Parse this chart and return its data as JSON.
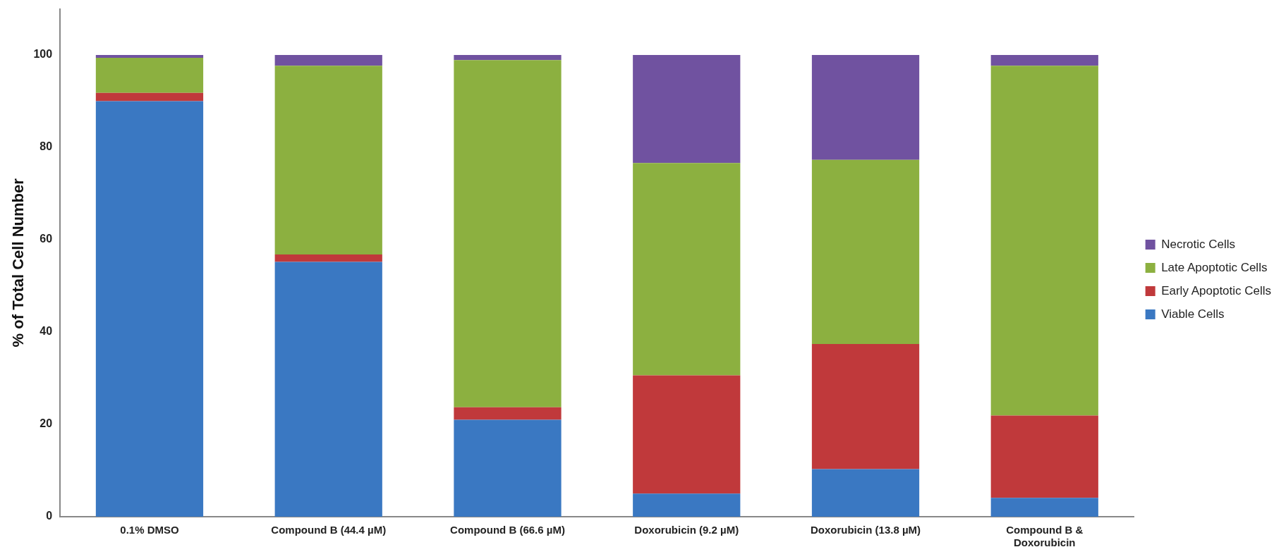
{
  "chart_data": {
    "type": "bar",
    "stacked": true,
    "ylabel": "% of Total Cell Number",
    "categories": [
      "0.1% DMSO",
      "Compound B (44.4 µM)",
      "Compound B (66.6 µM)",
      "Doxorubicin (9.2 µM)",
      "Doxorubicin (13.8 µM)",
      "Compound B & Doxorubicin"
    ],
    "series": [
      {
        "name": "Viable Cells",
        "color": "#3a78c2",
        "values": [
          90,
          55.2,
          21,
          5,
          10.3,
          4.1
        ]
      },
      {
        "name": "Early Apoptotic Cells",
        "color": "#c0393b",
        "values": [
          1.8,
          1.6,
          2.7,
          25.6,
          27.1,
          17.8
        ]
      },
      {
        "name": "Late Apoptotic Cells",
        "color": "#8cb040",
        "values": [
          7.6,
          40.9,
          75.2,
          46,
          39.9,
          75.8
        ]
      },
      {
        "name": "Necrotic Cells",
        "color": "#7052a0",
        "values": [
          0.6,
          2.3,
          1.1,
          23.4,
          22.7,
          2.3
        ]
      }
    ],
    "ylim": [
      0,
      110
    ],
    "yticks": [
      0,
      20,
      40,
      60,
      80,
      100
    ],
    "grid": false,
    "legend": "right"
  }
}
